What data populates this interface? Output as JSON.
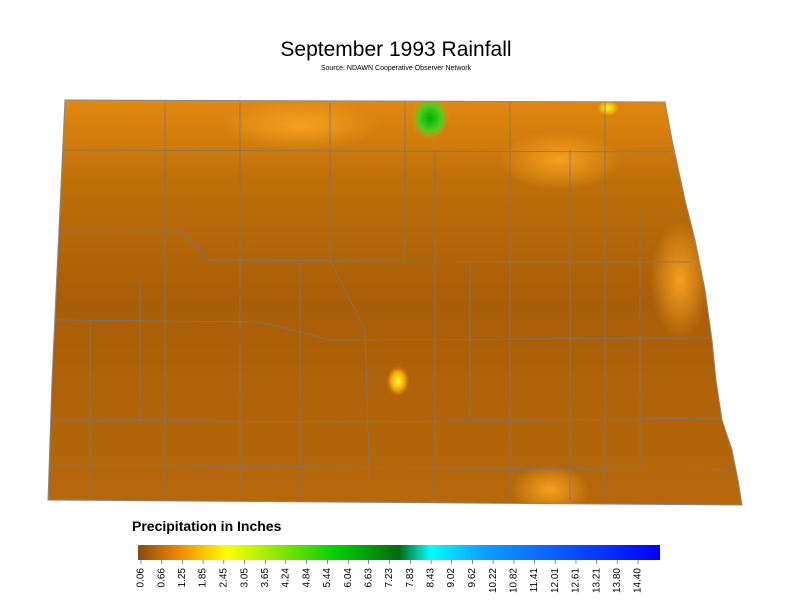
{
  "header": {
    "title": "September 1993 Rainfall",
    "subtitle": "Source: NDAWN Cooperative Observer Network"
  },
  "legend": {
    "title": "Precipitation in Inches",
    "ticks": [
      0.06,
      0.66,
      1.25,
      1.85,
      2.45,
      3.05,
      3.65,
      4.24,
      4.84,
      5.44,
      6.04,
      6.63,
      7.23,
      7.83,
      8.43,
      9.02,
      9.62,
      10.22,
      10.82,
      11.41,
      12.01,
      12.61,
      13.21,
      {
        "value": 13.8,
        "label": "13.80"
      },
      {
        "value": 14.4,
        "label": "14.40"
      }
    ]
  }
}
